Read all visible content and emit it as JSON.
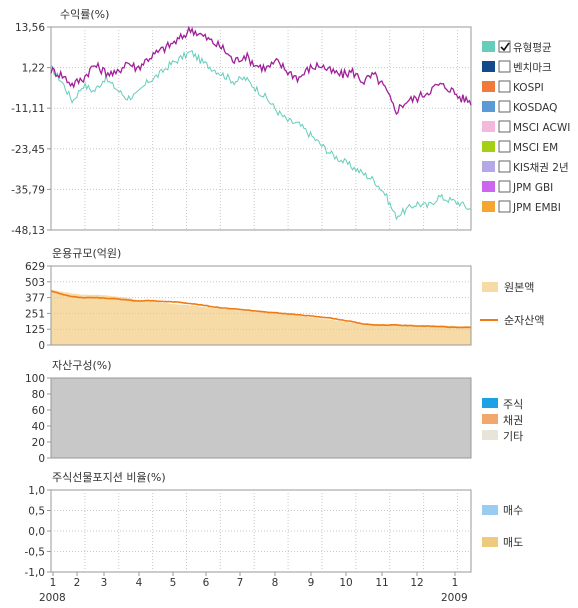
{
  "chart_data": [
    {
      "type": "line",
      "title": "수익률(%)",
      "y_ticks": [
        "13,56",
        "1,22",
        "-11,11",
        "-23,45",
        "-35,79",
        "-48,13"
      ],
      "ylim": [
        -48.13,
        13.56
      ],
      "x_ticks": [
        "1",
        "2",
        "3",
        "4",
        "5",
        "6",
        "7",
        "8",
        "9",
        "10",
        "11",
        "12",
        "1"
      ],
      "x_year_labels": [
        "2008",
        "2009"
      ],
      "grid": true,
      "legend_position": "right",
      "series": [
        {
          "name": "유형평균",
          "color": "#66cdbb",
          "checked": true,
          "values": [
            1.2,
            -3,
            -9,
            -4,
            -6,
            -2,
            -5,
            -8,
            -7,
            -3,
            -1,
            2,
            4,
            6,
            3,
            1,
            -1,
            -3,
            -2,
            -5,
            -8,
            -12,
            -15,
            -16,
            -19,
            -22,
            -25,
            -27,
            -29,
            -31,
            -33,
            -37,
            -44,
            -42,
            -40,
            -41,
            -38,
            -39,
            -40,
            -42
          ]
        },
        {
          "name": "펀드",
          "color": "#a0209a",
          "values": [
            0.5,
            -1,
            -4,
            -2,
            2,
            0,
            -1,
            3,
            1,
            4,
            6,
            8,
            10,
            13,
            11,
            9,
            7,
            3,
            5,
            2,
            1,
            3,
            0,
            -2,
            1,
            2,
            0,
            -1,
            0,
            -3,
            -1,
            -5,
            -12,
            -9,
            -8,
            -6,
            -4,
            -5,
            -8,
            -9
          ]
        },
        {
          "name": "벤치마크",
          "color": "#154a8a",
          "checked": false,
          "values": []
        },
        {
          "name": "KOSPI",
          "color": "#ef7a3a",
          "checked": false,
          "values": []
        },
        {
          "name": "KOSDAQ",
          "color": "#5b9bd5",
          "checked": false,
          "values": []
        },
        {
          "name": "MSCI ACWI",
          "color": "#f4b8dd",
          "checked": false,
          "values": []
        },
        {
          "name": "MSCI EM",
          "color": "#a5cf12",
          "checked": false,
          "values": []
        },
        {
          "name": "KIS채권 2년",
          "color": "#b6a7e6",
          "checked": false,
          "values": []
        },
        {
          "name": "JPM GBI",
          "color": "#cc66ee",
          "checked": false,
          "values": []
        },
        {
          "name": "JPM EMBI",
          "color": "#f5a531",
          "checked": false,
          "values": []
        }
      ]
    },
    {
      "type": "area",
      "title": "운용규모(억원)",
      "y_ticks": [
        "629",
        "503",
        "377",
        "251",
        "125",
        "0"
      ],
      "ylim": [
        0,
        629
      ],
      "grid": true,
      "series": [
        {
          "name": "원본액",
          "color": "#f7dba6",
          "values": [
            440,
            425,
            410,
            400,
            400,
            395,
            385,
            375,
            360,
            350,
            340,
            330,
            322,
            315,
            305,
            295,
            288,
            280,
            272,
            265,
            258,
            250,
            242,
            232,
            222,
            212,
            200,
            188,
            176,
            170,
            168,
            166,
            164,
            162,
            160,
            158,
            155,
            152,
            150,
            149
          ]
        },
        {
          "name": "순자산액",
          "color": "#ee7b14",
          "values": [
            430,
            405,
            385,
            375,
            378,
            372,
            368,
            360,
            350,
            355,
            348,
            345,
            340,
            330,
            318,
            305,
            295,
            288,
            280,
            270,
            262,
            255,
            248,
            240,
            232,
            224,
            214,
            200,
            185,
            168,
            160,
            158,
            160,
            155,
            152,
            150,
            148,
            142,
            140,
            140
          ]
        }
      ]
    },
    {
      "type": "area",
      "title": "자산구성(%)",
      "y_ticks": [
        "100",
        "80",
        "60",
        "40",
        "20",
        "0"
      ],
      "ylim": [
        0,
        100
      ],
      "series": [
        {
          "name": "주식",
          "color": "#1aa1e6",
          "values": [
            0
          ]
        },
        {
          "name": "채권",
          "color": "#f2a86a",
          "values": [
            0
          ]
        },
        {
          "name": "기타",
          "color": "#e8e4da",
          "values": [
            100
          ]
        }
      ]
    },
    {
      "type": "bar",
      "title": "주식선물포지션 비율(%)",
      "y_ticks": [
        "1,0",
        "0,5",
        "0,0",
        "-0,5",
        "-1,0"
      ],
      "ylim": [
        -1.0,
        1.0
      ],
      "grid": true,
      "series": [
        {
          "name": "매수",
          "color": "#99ccf0",
          "values": []
        },
        {
          "name": "매도",
          "color": "#eecb7c",
          "values": []
        }
      ]
    }
  ]
}
